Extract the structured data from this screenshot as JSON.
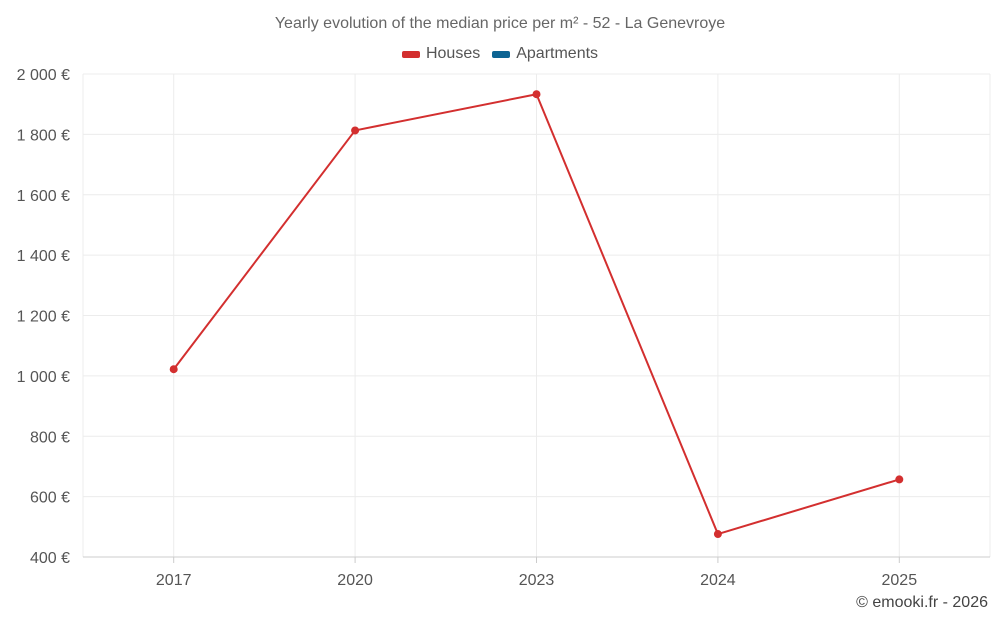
{
  "chart_data": {
    "type": "line",
    "title": "Yearly evolution of the median price per m² - 52 - La Genevroye",
    "categories": [
      "2017",
      "2020",
      "2023",
      "2024",
      "2025"
    ],
    "series": [
      {
        "name": "Houses",
        "color": "#d32f2f",
        "values": [
          1022,
          1813,
          1933,
          476,
          657
        ]
      },
      {
        "name": "Apartments",
        "color": "#0d6493",
        "values": [
          null,
          null,
          null,
          null,
          null
        ]
      }
    ],
    "ylim": [
      400,
      2000
    ],
    "yticks": [
      400,
      600,
      800,
      1000,
      1200,
      1400,
      1600,
      1800,
      2000
    ],
    "ytick_labels": [
      "400 €",
      "600 €",
      "800 €",
      "1 000 €",
      "1 200 €",
      "1 400 €",
      "1 600 €",
      "1 800 €",
      "2 000 €"
    ],
    "xlabel": "",
    "ylabel": "",
    "grid": true,
    "legend": "top-center"
  },
  "credit": "© emooki.fr - 2026"
}
